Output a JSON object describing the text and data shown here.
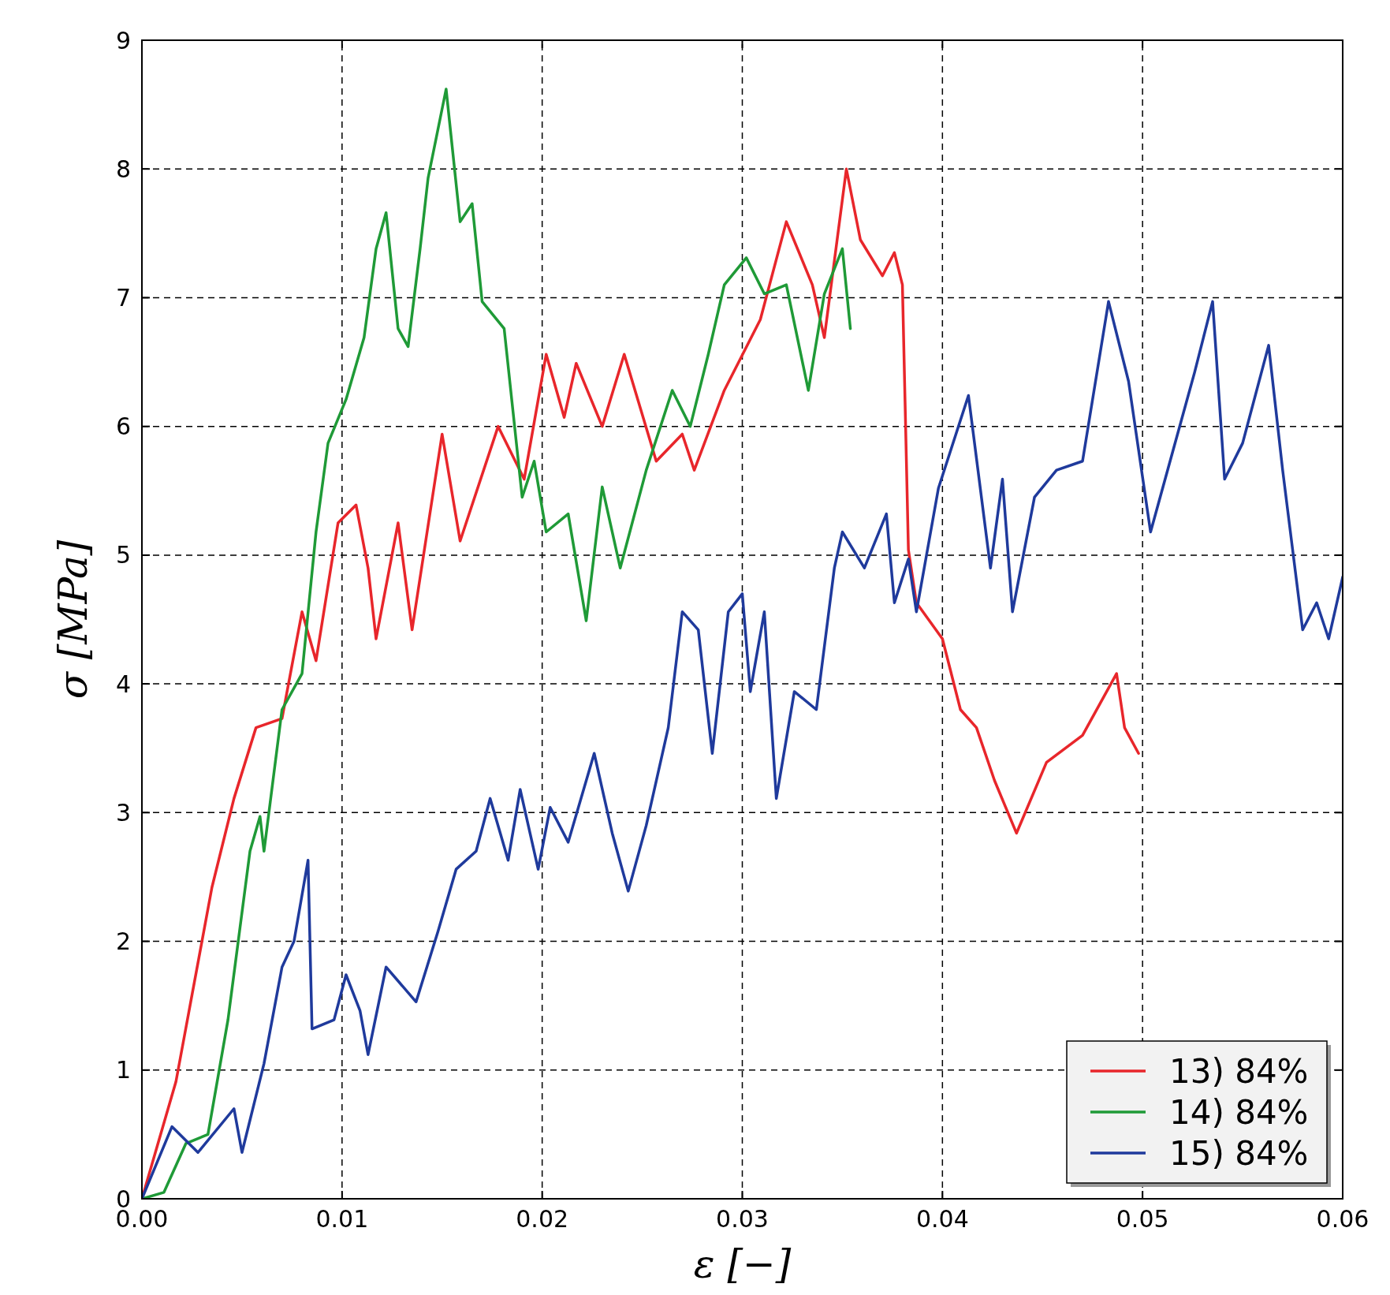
{
  "chart_data": {
    "type": "line",
    "xlabel": "ε [−]",
    "ylabel": "σ [MPa]",
    "xlim": [
      0,
      0.06
    ],
    "ylim": [
      0,
      9
    ],
    "xticks": [
      {
        "value": 0,
        "label": "0.00"
      },
      {
        "value": 0.01,
        "label": "0.01"
      },
      {
        "value": 0.02,
        "label": "0.02"
      },
      {
        "value": 0.03,
        "label": "0.03"
      },
      {
        "value": 0.04,
        "label": "0.04"
      },
      {
        "value": 0.05,
        "label": "0.05"
      },
      {
        "value": 0.06,
        "label": "0.06"
      }
    ],
    "yticks": [
      0,
      1,
      2,
      3,
      4,
      5,
      6,
      7,
      8,
      9
    ],
    "grid": true,
    "legend": "bottom right",
    "line_style": "solid",
    "series": [
      {
        "name": "13) 84%",
        "color": "#e8262b",
        "x": [
          0,
          0.0017,
          0.0035,
          0.0046,
          0.0057,
          0.007,
          0.008,
          0.0087,
          0.0098,
          0.0107,
          0.0113,
          0.0117,
          0.0128,
          0.0135,
          0.015,
          0.0159,
          0.0178,
          0.0191,
          0.0202,
          0.0211,
          0.0217,
          0.023,
          0.0241,
          0.0257,
          0.027,
          0.0276,
          0.0291,
          0.0309,
          0.0322,
          0.0335,
          0.0341,
          0.0352,
          0.0359,
          0.037,
          0.0376,
          0.038,
          0.0383,
          0.0387,
          0.04,
          0.0409,
          0.0417,
          0.0426,
          0.0437,
          0.0452,
          0.047,
          0.0487,
          0.0491,
          0.0498
        ],
        "values": [
          0,
          0.91,
          2.42,
          3.11,
          3.66,
          3.73,
          4.56,
          4.18,
          5.25,
          5.39,
          4.9,
          4.35,
          5.25,
          4.42,
          5.94,
          5.11,
          6.0,
          5.59,
          6.56,
          6.07,
          6.49,
          6.0,
          6.56,
          5.73,
          5.94,
          5.66,
          6.28,
          6.83,
          7.59,
          7.1,
          6.69,
          8.0,
          7.45,
          7.17,
          7.35,
          7.1,
          5.04,
          4.63,
          4.35,
          3.8,
          3.66,
          3.25,
          2.84,
          3.39,
          3.6,
          4.08,
          3.66,
          3.46
        ]
      },
      {
        "name": "14) 84%",
        "color": "#1f9a37",
        "x": [
          0,
          0.0011,
          0.0022,
          0.0033,
          0.0043,
          0.0054,
          0.0059,
          0.0061,
          0.007,
          0.008,
          0.0087,
          0.0093,
          0.0102,
          0.0111,
          0.0117,
          0.0122,
          0.0128,
          0.0133,
          0.0139,
          0.0143,
          0.0152,
          0.0159,
          0.0165,
          0.017,
          0.0181,
          0.019,
          0.0196,
          0.0202,
          0.0213,
          0.0222,
          0.023,
          0.0239,
          0.0252,
          0.0265,
          0.0274,
          0.0283,
          0.0291,
          0.0302,
          0.0311,
          0.0322,
          0.0333,
          0.0341,
          0.035,
          0.0354
        ],
        "values": [
          0,
          0.05,
          0.43,
          0.5,
          1.39,
          2.7,
          2.97,
          2.7,
          3.8,
          4.08,
          5.18,
          5.87,
          6.21,
          6.69,
          7.38,
          7.66,
          6.76,
          6.62,
          7.38,
          7.93,
          8.62,
          7.59,
          7.73,
          6.97,
          6.76,
          5.45,
          5.73,
          5.18,
          5.32,
          4.49,
          5.53,
          4.9,
          5.66,
          6.28,
          6.0,
          6.56,
          7.1,
          7.31,
          7.03,
          7.1,
          6.28,
          7.03,
          7.38,
          6.76
        ]
      },
      {
        "name": "15) 84%",
        "color": "#1f3a9c",
        "x": [
          0,
          0.0015,
          0.0028,
          0.0046,
          0.005,
          0.0061,
          0.007,
          0.0076,
          0.0083,
          0.0085,
          0.0096,
          0.0102,
          0.0109,
          0.0113,
          0.0122,
          0.0137,
          0.0148,
          0.0157,
          0.0167,
          0.0174,
          0.0183,
          0.0189,
          0.0198,
          0.0204,
          0.0213,
          0.0226,
          0.0235,
          0.0243,
          0.0252,
          0.0263,
          0.027,
          0.0278,
          0.0285,
          0.0293,
          0.03,
          0.0304,
          0.0311,
          0.0317,
          0.0326,
          0.0337,
          0.0346,
          0.035,
          0.0361,
          0.0372,
          0.0376,
          0.0383,
          0.0387,
          0.0398,
          0.0413,
          0.0424,
          0.043,
          0.0435,
          0.0446,
          0.0457,
          0.047,
          0.0483,
          0.0493,
          0.0504,
          0.0515,
          0.0526,
          0.0535,
          0.0541,
          0.055,
          0.0563,
          0.057,
          0.058,
          0.0587,
          0.0593,
          0.06
        ],
        "values": [
          0,
          0.56,
          0.36,
          0.7,
          0.36,
          1.05,
          1.8,
          2.0,
          2.63,
          1.32,
          1.39,
          1.74,
          1.46,
          1.12,
          1.8,
          1.53,
          2.08,
          2.56,
          2.7,
          3.11,
          2.63,
          3.18,
          2.56,
          3.04,
          2.77,
          3.46,
          2.84,
          2.39,
          2.9,
          3.66,
          4.56,
          4.42,
          3.46,
          4.56,
          4.7,
          3.94,
          4.56,
          3.11,
          3.94,
          3.8,
          4.9,
          5.18,
          4.9,
          5.32,
          4.63,
          4.97,
          4.56,
          5.52,
          6.24,
          4.9,
          5.59,
          4.56,
          5.45,
          5.66,
          5.73,
          6.97,
          6.35,
          5.18,
          5.8,
          6.42,
          6.97,
          5.59,
          5.87,
          6.63,
          5.66,
          4.42,
          4.63,
          4.35,
          4.83
        ]
      }
    ]
  }
}
